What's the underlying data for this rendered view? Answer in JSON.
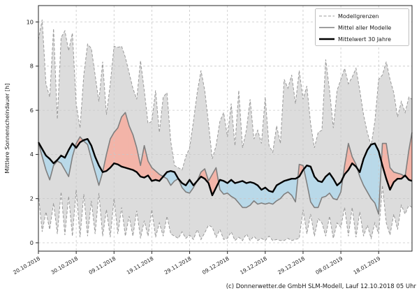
{
  "chart": {
    "ylabel": "Mittlere Sonnenscheindauer [h]",
    "caption": "(c) Donnerwetter.de GmbH SLM-Modell, Lauf 12.10.2018 05 Uhr",
    "legend": {
      "position": "top-right",
      "items": [
        {
          "label": "Modellgrenzen",
          "style": "dashed-gray"
        },
        {
          "label": "Mittel aller Modelle",
          "style": "solid-gray"
        },
        {
          "label": "Mittelwert 30 Jahre",
          "style": "solid-black-thick"
        }
      ]
    },
    "colors": {
      "band_fill": "#dcdcdc",
      "band_edge": "#999999",
      "above_normal_fill": "#f3b4a8",
      "below_normal_fill": "#b9d9e9",
      "model_mean_line": "#7f7f7f",
      "mean_30y_line": "#000000",
      "grid": "#c8c8c8",
      "axis": "#262626",
      "background": "#ffffff"
    }
  },
  "chart_data": {
    "type": "line",
    "title": "",
    "ylabel": "Mittlere Sonnenscheindauer [h]",
    "xlabel": "",
    "x_unit": "day index from 20.10.2018 (daily values)",
    "x_tick_day_indices": [
      0,
      10,
      20,
      30,
      40,
      50,
      60,
      70,
      80,
      90
    ],
    "x_tick_labels": [
      "20.10.2018",
      "30.10.2018",
      "09.11.2018",
      "19.11.2018",
      "29.11.2018",
      "09.12.2018",
      "19.12.2018",
      "29.12.2018",
      "08.01.2019",
      "18.01.2019"
    ],
    "y_ticks": [
      0,
      2,
      4,
      6,
      8,
      10
    ],
    "ylim": [
      -0.4,
      10.75
    ],
    "grid": true,
    "legend_position": "upper right",
    "series": [
      {
        "key": "upper",
        "name": "Modellgrenzen (obere Grenze)",
        "values": [
          9.2,
          10.1,
          7.2,
          6.6,
          9.7,
          5.6,
          9.3,
          9.6,
          8.7,
          9.5,
          6.3,
          5.2,
          7.6,
          9.0,
          8.8,
          7.6,
          6.4,
          8.2,
          5.8,
          7.2,
          8.9,
          8.85,
          8.9,
          8.4,
          7.7,
          7.0,
          6.5,
          8.25,
          6.9,
          5.4,
          5.5,
          6.9,
          5.0,
          6.6,
          6.8,
          4.6,
          3.5,
          3.4,
          3.3,
          3.9,
          4.3,
          5.5,
          6.8,
          7.8,
          6.9,
          5.4,
          3.8,
          4.4,
          5.5,
          5.9,
          4.8,
          6.3,
          4.4,
          6.9,
          4.3,
          5.1,
          6.5,
          4.7,
          5.1,
          4.5,
          6.6,
          4.4,
          4.1,
          5.3,
          4.5,
          7.4,
          7.0,
          7.6,
          6.3,
          7.8,
          6.5,
          7.1,
          5.4,
          4.3,
          5.0,
          5.1,
          8.3,
          6.9,
          5.2,
          6.9,
          7.4,
          7.9,
          7.2,
          7.5,
          7.9,
          6.9,
          5.8,
          5.0,
          4.4,
          5.5,
          7.4,
          7.6,
          8.2,
          7.4,
          6.8,
          5.7,
          6.4,
          5.9,
          6.6,
          6.5
        ]
      },
      {
        "key": "lower",
        "name": "Modellgrenzen (untere Grenze)",
        "values": [
          2.2,
          0.5,
          1.4,
          0.6,
          1.8,
          0.4,
          2.3,
          0.35,
          2.1,
          0.3,
          2.4,
          0.25,
          2.2,
          0.3,
          1.9,
          0.4,
          2.25,
          0.3,
          1.5,
          0.25,
          2.0,
          0.4,
          1.6,
          0.3,
          1.2,
          0.3,
          1.45,
          0.2,
          1.0,
          0.3,
          1.5,
          0.25,
          0.9,
          0.3,
          1.2,
          0.4,
          0.3,
          0.2,
          0.5,
          0.2,
          0.35,
          0.15,
          0.6,
          0.15,
          0.45,
          0.8,
          0.7,
          0.25,
          0.6,
          0.15,
          0.2,
          0.5,
          0.1,
          0.25,
          0.1,
          0.4,
          0.1,
          0.3,
          0.1,
          0.2,
          0.1,
          0.3,
          0.1,
          0.15,
          0.1,
          0.1,
          0.2,
          0.1,
          0.15,
          0.2,
          1.5,
          0.4,
          1.3,
          0.3,
          1.1,
          0.9,
          0.3,
          1.2,
          0.2,
          0.9,
          0.7,
          1.6,
          0.3,
          1.6,
          0.25,
          1.4,
          0.3,
          0.8,
          0.2,
          0.9,
          0.4,
          2.6,
          0.9,
          0.35,
          1.3,
          0.6,
          1.7,
          1.3,
          1.7,
          1.6
        ]
      },
      {
        "key": "model_mean",
        "name": "Mittel aller Modelle",
        "values": [
          4.55,
          3.9,
          3.3,
          2.85,
          3.5,
          3.7,
          3.6,
          3.3,
          3.0,
          3.9,
          4.5,
          4.8,
          4.6,
          4.45,
          3.8,
          3.2,
          2.6,
          3.2,
          4.0,
          4.7,
          5.0,
          5.2,
          5.7,
          5.9,
          5.3,
          4.9,
          4.3,
          3.5,
          4.4,
          3.7,
          3.4,
          3.25,
          3.1,
          3.0,
          2.9,
          2.6,
          2.8,
          2.9,
          2.5,
          2.3,
          2.25,
          2.5,
          2.8,
          3.2,
          3.35,
          2.8,
          3.1,
          3.4,
          2.4,
          2.2,
          2.25,
          2.1,
          2.0,
          1.8,
          1.6,
          1.6,
          1.7,
          1.9,
          1.75,
          1.8,
          1.75,
          1.8,
          1.75,
          1.9,
          2.0,
          2.2,
          2.3,
          2.15,
          1.85,
          3.55,
          3.5,
          2.7,
          1.85,
          1.6,
          1.6,
          2.05,
          2.1,
          2.25,
          2.0,
          1.95,
          2.3,
          3.5,
          4.5,
          3.9,
          3.55,
          3.0,
          2.6,
          2.3,
          2.0,
          1.8,
          1.3,
          4.5,
          4.5,
          3.4,
          3.2,
          3.15,
          3.1,
          3.0,
          4.2,
          5.0
        ]
      },
      {
        "key": "mean30y",
        "name": "Mittelwert 30 Jahre",
        "values": [
          4.55,
          4.25,
          3.95,
          3.8,
          3.6,
          3.75,
          3.95,
          3.85,
          4.2,
          4.5,
          4.3,
          4.55,
          4.65,
          4.7,
          4.4,
          3.9,
          3.5,
          3.2,
          3.25,
          3.4,
          3.6,
          3.55,
          3.45,
          3.4,
          3.35,
          3.3,
          3.2,
          3.0,
          2.95,
          3.05,
          2.8,
          2.85,
          2.8,
          3.0,
          3.2,
          3.25,
          3.2,
          2.9,
          2.7,
          2.6,
          2.85,
          2.6,
          2.8,
          3.0,
          2.9,
          2.7,
          2.15,
          2.5,
          2.85,
          2.8,
          2.7,
          2.85,
          2.7,
          2.75,
          2.8,
          2.7,
          2.75,
          2.7,
          2.6,
          2.4,
          2.5,
          2.35,
          2.3,
          2.6,
          2.7,
          2.8,
          2.85,
          2.9,
          2.9,
          3.0,
          3.3,
          3.5,
          3.45,
          3.0,
          2.8,
          2.75,
          3.0,
          3.15,
          2.9,
          2.6,
          2.75,
          3.1,
          3.3,
          3.6,
          3.45,
          3.2,
          3.8,
          4.2,
          4.45,
          4.5,
          4.15,
          3.5,
          2.9,
          2.4,
          2.75,
          2.9,
          2.9,
          3.05,
          2.85,
          2.8
        ]
      }
    ]
  }
}
